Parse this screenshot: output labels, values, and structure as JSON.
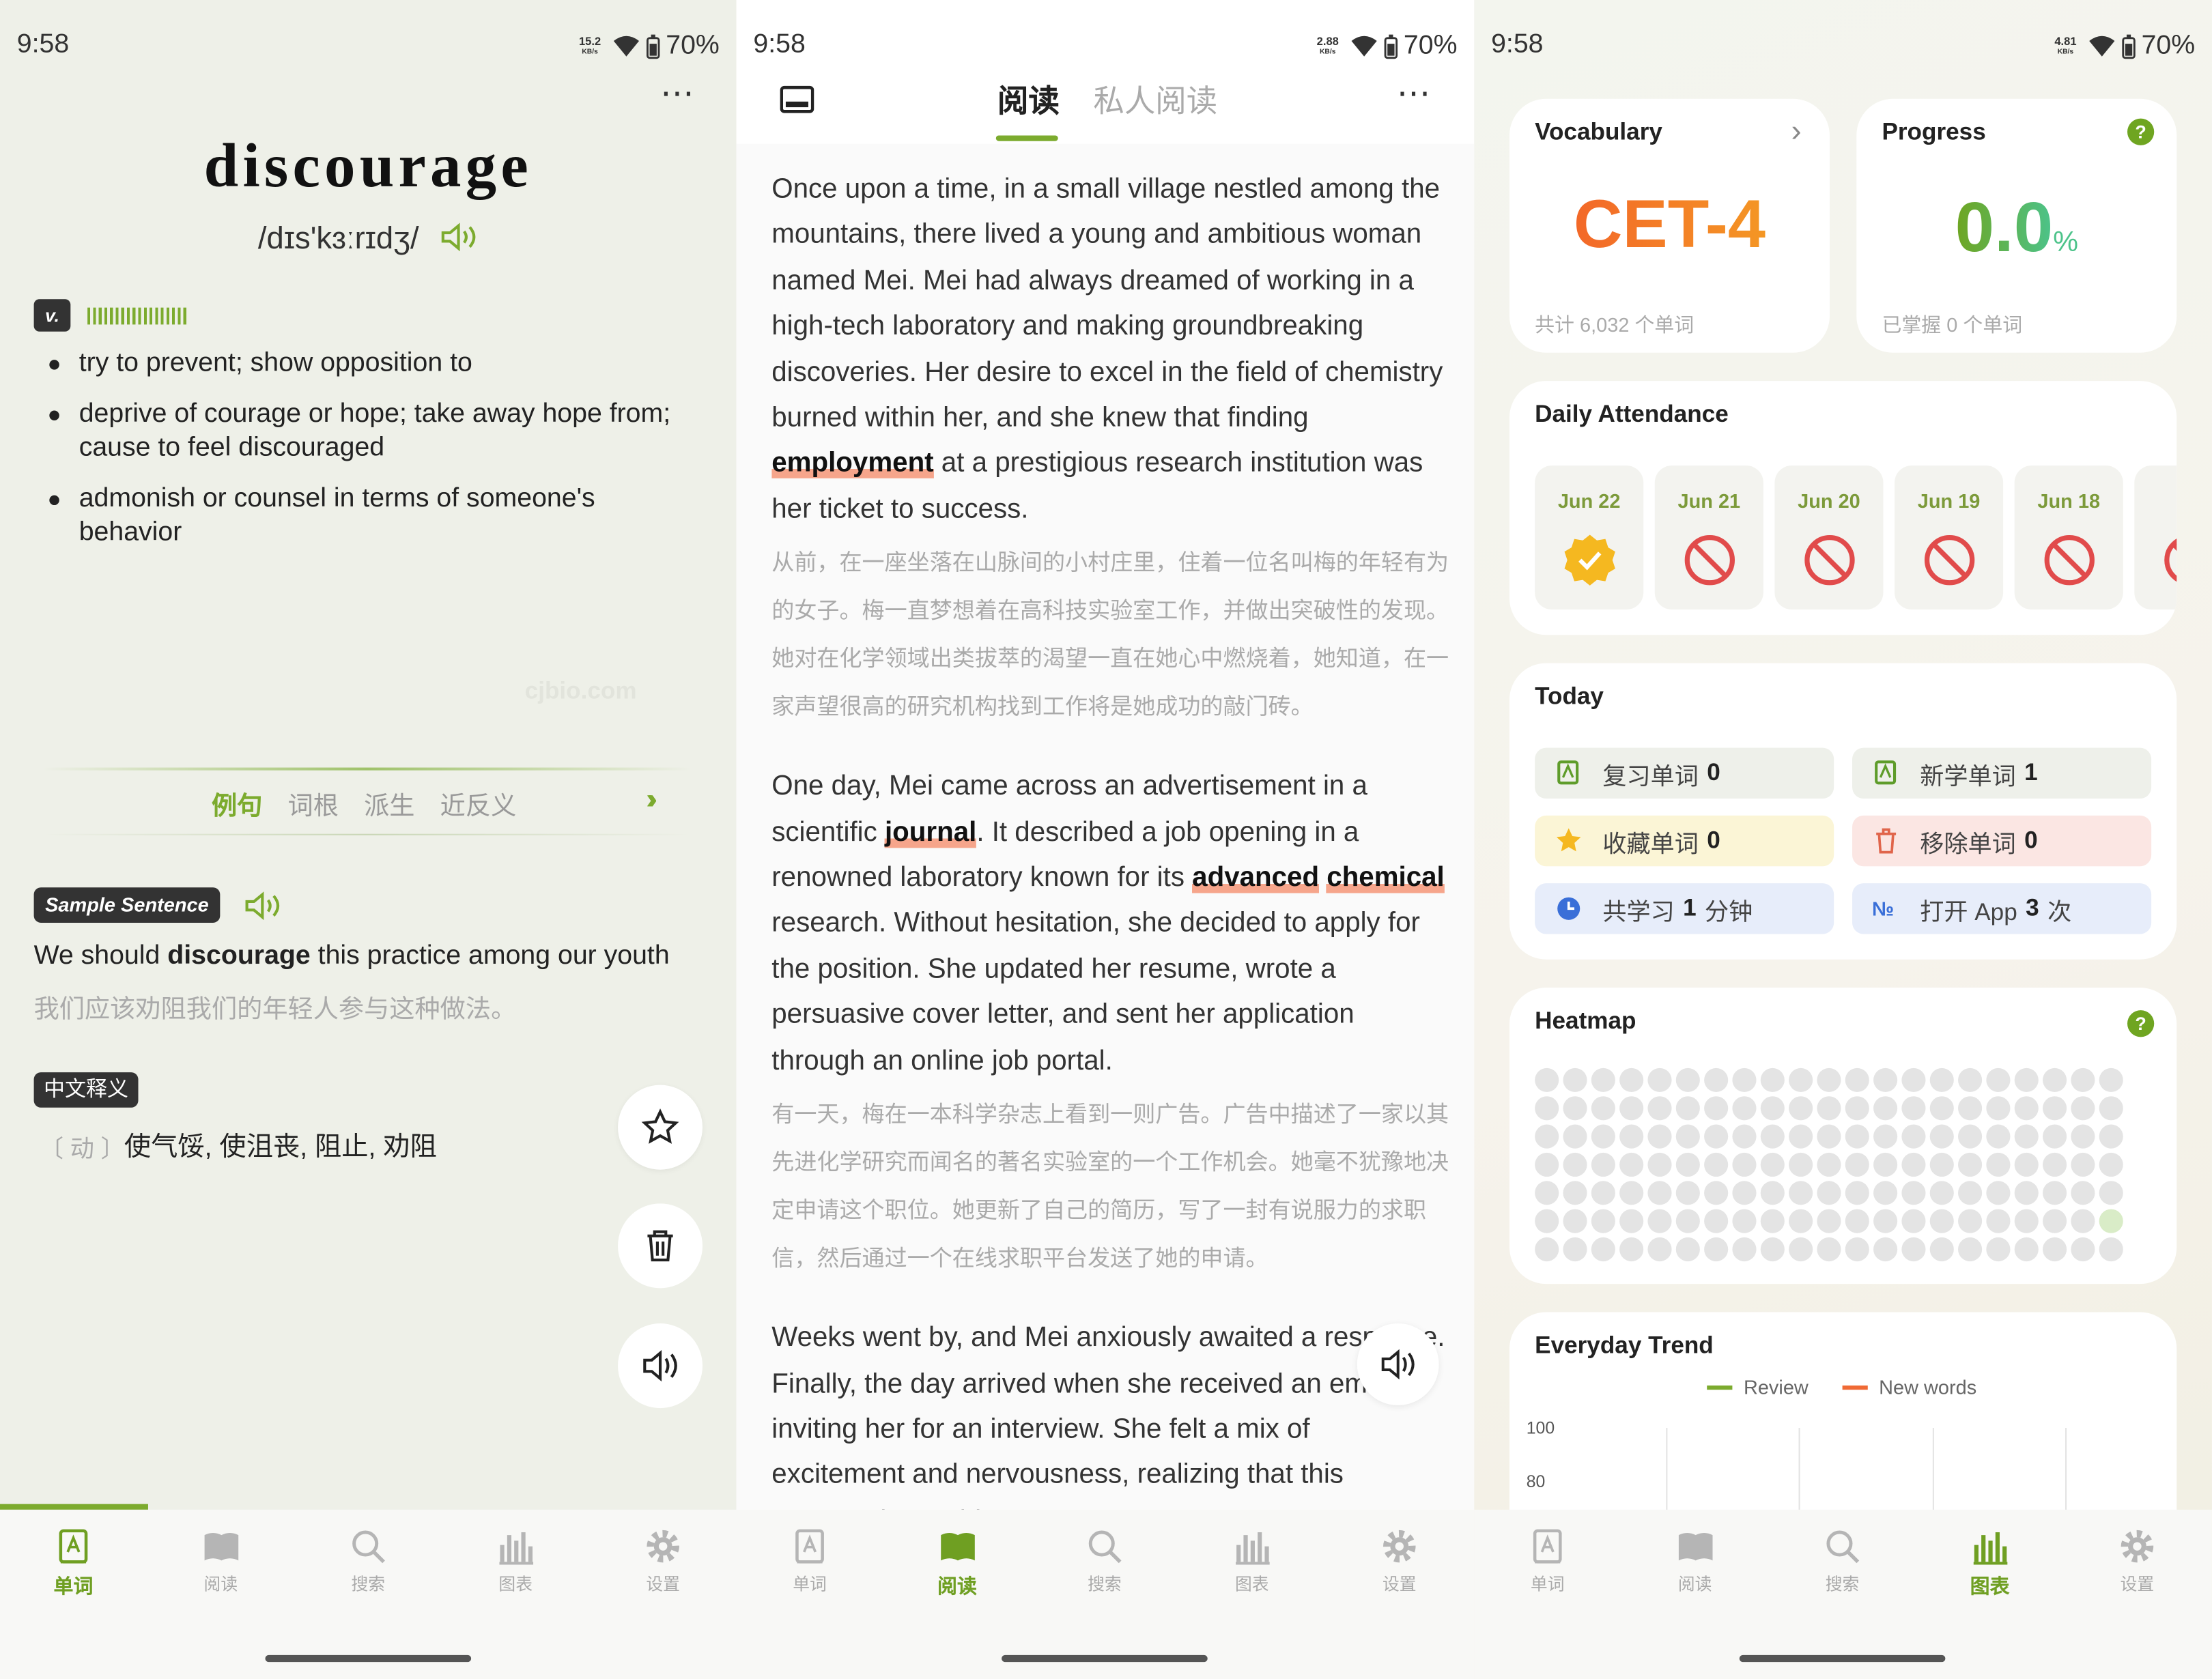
{
  "nav": [
    "单词",
    "阅读",
    "搜索",
    "图表",
    "设置"
  ],
  "panels": [
    {
      "status": {
        "time": "9:58",
        "speed": "15.2",
        "speed_unit": "KB/s",
        "battery": "70%"
      },
      "nav_active": 0,
      "word": "discourage",
      "phonetic": "/dɪs'kɜːrɪdʒ/",
      "pos": "v.",
      "definitions": [
        "try to prevent; show opposition to",
        "deprive of courage or hope; take away hope from; cause to feel discouraged",
        "admonish or counsel in terms of someone's behavior"
      ],
      "watermark": "cjbio.com",
      "tabs": [
        "例句",
        "词根",
        "派生",
        "近反义"
      ],
      "sample_label": "Sample Sentence",
      "sample": {
        "before": "We should ",
        "keyword": "discourage",
        "after": " this practice among our youth",
        "translation": "我们应该劝阻我们的年轻人参与这种做法。"
      },
      "cn_label": "中文释义",
      "cn_pos": "动",
      "cn_meaning": "使气馁, 使沮丧, 阻止, 劝阻"
    },
    {
      "status": {
        "time": "9:58",
        "speed": "2.88",
        "speed_unit": "KB/s",
        "battery": "70%"
      },
      "nav_active": 1,
      "tabs": [
        "阅读",
        "私人阅读"
      ],
      "paragraphs": [
        {
          "en": [
            {
              "text": "Once upon a time, in a small village nestled among the mountains, there lived a young and ambitious woman named Mei. Mei had always dreamed of working in a high-tech laboratory and making groundbreaking discoveries. Her desire to excel in the field of chemistry burned within her, and she knew that finding "
            },
            {
              "text": "employment",
              "highlight": true
            },
            {
              "text": " at a prestigious research institution was her ticket to success."
            }
          ],
          "zh": "从前，在一座坐落在山脉间的小村庄里，住着一位名叫梅的年轻有为的女子。梅一直梦想着在高科技实验室工作，并做出突破性的发现。她对在化学领域出类拔萃的渴望一直在她心中燃烧着，她知道，在一家声望很高的研究机构找到工作将是她成功的敲门砖。"
        },
        {
          "en": [
            {
              "text": "One day, Mei came across an advertisement in a scientific "
            },
            {
              "text": "journal",
              "highlight": true
            },
            {
              "text": ". It described a job opening in a renowned laboratory known for its "
            },
            {
              "text": "advanced",
              "highlight": true
            },
            {
              "text": " "
            },
            {
              "text": "chemical",
              "highlight": true
            },
            {
              "text": " research. Without hesitation, she decided to apply for the position. She updated her resume, wrote a persuasive cover letter, and sent her application through an online job portal."
            }
          ],
          "zh": "有一天，梅在一本科学杂志上看到一则广告。广告中描述了一家以其先进化学研究而闻名的著名实验室的一个工作机会。她毫不犹豫地决定申请这个职位。她更新了自己的简历，写了一封有说服力的求职信，然后通过一个在线求职平台发送了她的申请。"
        },
        {
          "en": [
            {
              "text": "Weeks went by, and Mei anxiously awaited a response. Finally, the day arrived when she received an email inviting her for an interview. She felt a mix of excitement and nervousness, realizing that this opportunity could"
            }
          ]
        }
      ]
    },
    {
      "status": {
        "time": "9:58",
        "speed": "4.81",
        "speed_unit": "KB/s",
        "battery": "70%"
      },
      "nav_active": 3,
      "vocabulary": {
        "title": "Vocabulary",
        "level": "CET-4",
        "total": "共计 6,032 个单词"
      },
      "progress": {
        "title": "Progress",
        "value": "0.0",
        "unit": "%",
        "mastered": "已掌握 0 个单词"
      },
      "attendance": {
        "title": "Daily Attendance",
        "days": [
          {
            "date": "Jun 22",
            "status": "checked"
          },
          {
            "date": "Jun 21",
            "status": "missed"
          },
          {
            "date": "Jun 20",
            "status": "missed"
          },
          {
            "date": "Jun 19",
            "status": "missed"
          },
          {
            "date": "Jun 18",
            "status": "missed"
          },
          {
            "date": "Ju",
            "status": "missed"
          }
        ]
      },
      "today": {
        "title": "Today",
        "items": [
          {
            "label": "复习单词",
            "value": "0",
            "color": "#eef0ea"
          },
          {
            "label": "新学单词",
            "value": "1",
            "color": "#eef0ea"
          },
          {
            "label": "收藏单词",
            "value": "0",
            "color": "#fbf5d6"
          },
          {
            "label": "移除单词",
            "value": "0",
            "color": "#fbe6e3"
          },
          {
            "label": "共学习",
            "value": "1",
            "suffix": "分钟",
            "color": "#e7edfa"
          },
          {
            "label": "打开 App",
            "value": "3",
            "suffix": "次",
            "color": "#e7edfa"
          }
        ]
      },
      "heatmap": {
        "title": "Heatmap"
      },
      "trend": {
        "title": "Everyday Trend",
        "series": [
          {
            "name": "Review",
            "color": "#7cab2e"
          },
          {
            "name": "New words",
            "color": "#f06a35"
          }
        ],
        "yticks": [
          100,
          80
        ]
      }
    }
  ]
}
